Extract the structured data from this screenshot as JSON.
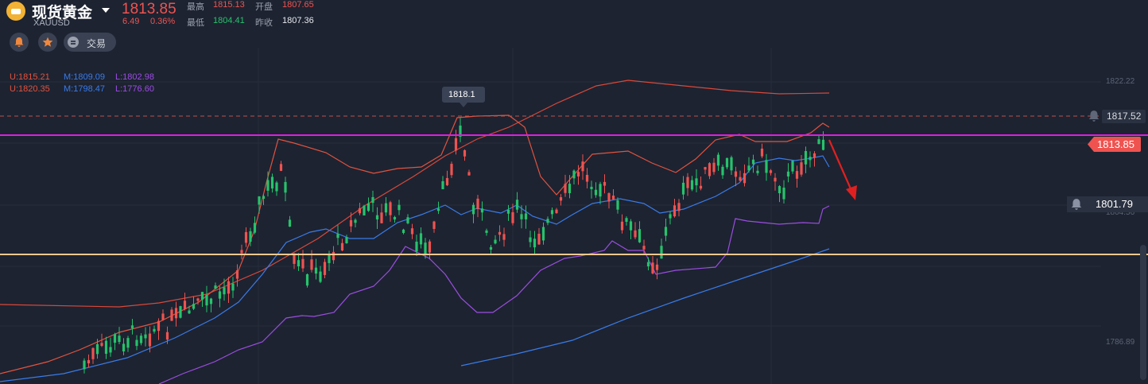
{
  "header": {
    "title": "现货黄金",
    "symbol": "XAUUSD",
    "price": "1813.85",
    "change": "6.49",
    "change_pct": "0.36%",
    "stats": {
      "high_label": "最高",
      "high": "1815.13",
      "open_label": "开盘",
      "open": "1807.65",
      "low_label": "最低",
      "low": "1804.41",
      "prev_label": "昨收",
      "prev": "1807.36"
    }
  },
  "toolbar": {
    "alert_icon": "bell-icon",
    "favorite_icon": "star-icon",
    "trade_label": "交易"
  },
  "indicators": {
    "row1": {
      "u": "U:1815.21",
      "m": "M:1809.09",
      "l": "L:1802.98"
    },
    "row2": {
      "u": "U:1820.35",
      "m": "M:1798.47",
      "l": "L:1776.60"
    }
  },
  "axis": {
    "ticks": [
      "1822.22",
      "1804.56",
      "1786.89"
    ]
  },
  "price_tags": {
    "peak": "1818.1",
    "alert_upper": "1817.52",
    "current": "1813.85",
    "alert_lower": "1801.79"
  },
  "colors": {
    "background": "#1d2331",
    "up": "#ef5350",
    "down": "#26c36b",
    "band_inner": "#e2533f",
    "band_outer_upper": "#d9483a",
    "band_lower": "#9b4de0",
    "mid": "#3a7be8",
    "resistance": "#e01ee0",
    "support": "#f5c890"
  }
}
